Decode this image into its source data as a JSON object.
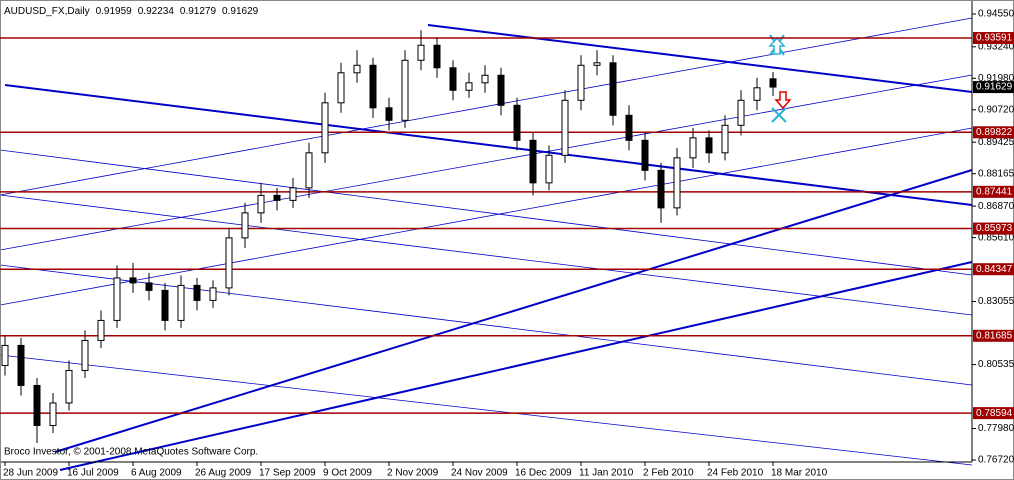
{
  "chart_data": {
    "type": "candlestick",
    "symbol": "AUDUSD_FX,Daily",
    "footer": "Broco Investor, © 2001-2008 MetaQuotes Software Corp.",
    "categories": [
      "28 Jun 2009",
      null,
      null,
      null,
      "16 Jul 2009",
      null,
      null,
      null,
      "6 Aug 2009",
      null,
      null,
      null,
      "26 Aug 2009",
      null,
      null,
      null,
      "17 Sep 2009",
      null,
      null,
      null,
      "9 Oct 2009",
      null,
      null,
      null,
      "2 Nov 2009",
      null,
      null,
      null,
      "24 Nov 2009",
      null,
      null,
      null,
      "16 Dec 2009",
      null,
      null,
      null,
      "11 Jan 2010",
      null,
      null,
      null,
      "2 Feb 2010",
      null,
      null,
      null,
      "24 Feb 2010",
      null,
      null,
      null,
      "18 Mar 2010"
    ],
    "open": [
      0.805,
      0.813,
      0.797,
      0.781,
      0.79,
      0.803,
      0.815,
      0.823,
      0.84,
      0.838,
      0.835,
      0.823,
      0.837,
      0.831,
      0.836,
      0.856,
      0.866,
      0.873,
      0.871,
      0.876,
      0.89,
      0.91,
      0.922,
      0.925,
      0.908,
      0.903,
      0.927,
      0.933,
      0.924,
      0.915,
      0.918,
      0.921,
      0.909,
      0.895,
      0.878,
      0.889,
      0.911,
      0.925,
      0.926,
      0.905,
      0.895,
      0.883,
      0.868,
      0.888,
      0.896,
      0.89,
      0.901,
      0.911,
      0.91959
    ],
    "high": [
      0.817,
      0.816,
      0.8,
      0.794,
      0.807,
      0.819,
      0.827,
      0.845,
      0.846,
      0.842,
      0.838,
      0.841,
      0.84,
      0.839,
      0.86,
      0.87,
      0.878,
      0.876,
      0.88,
      0.894,
      0.914,
      0.926,
      0.931,
      0.928,
      0.912,
      0.931,
      0.939,
      0.936,
      0.927,
      0.922,
      0.925,
      0.924,
      0.912,
      0.898,
      0.893,
      0.915,
      0.929,
      0.931,
      0.929,
      0.909,
      0.898,
      0.886,
      0.892,
      0.9,
      0.899,
      0.905,
      0.915,
      0.92,
      0.92234
    ],
    "low": [
      0.801,
      0.793,
      0.774,
      0.778,
      0.787,
      0.8,
      0.812,
      0.82,
      0.834,
      0.831,
      0.819,
      0.82,
      0.827,
      0.828,
      0.833,
      0.852,
      0.862,
      0.867,
      0.868,
      0.872,
      0.886,
      0.906,
      0.918,
      0.904,
      0.899,
      0.9,
      0.923,
      0.92,
      0.911,
      0.912,
      0.914,
      0.905,
      0.891,
      0.873,
      0.875,
      0.886,
      0.907,
      0.921,
      0.901,
      0.891,
      0.879,
      0.862,
      0.865,
      0.884,
      0.886,
      0.887,
      0.897,
      0.907,
      0.91279
    ],
    "close": [
      0.813,
      0.797,
      0.781,
      0.79,
      0.803,
      0.815,
      0.823,
      0.84,
      0.838,
      0.835,
      0.823,
      0.837,
      0.831,
      0.836,
      0.856,
      0.866,
      0.873,
      0.871,
      0.876,
      0.89,
      0.91,
      0.922,
      0.925,
      0.908,
      0.903,
      0.927,
      0.933,
      0.924,
      0.915,
      0.918,
      0.921,
      0.909,
      0.895,
      0.878,
      0.889,
      0.911,
      0.925,
      0.926,
      0.905,
      0.895,
      0.883,
      0.868,
      0.888,
      0.896,
      0.89,
      0.901,
      0.911,
      0.916,
      0.91629
    ],
    "ylim": [
      0.7664,
      0.9511
    ],
    "yticks": [
      {
        "value": 0.9455,
        "label": "0.94550"
      },
      {
        "value": 0.9324,
        "label": "0.93240"
      },
      {
        "value": 0.9198,
        "label": "0.91980"
      },
      {
        "value": 0.9072,
        "label": "0.90720"
      },
      0.89425,
      0.88165,
      {
        "value": 0.8687,
        "label": "0.86870"
      },
      {
        "value": 0.8561,
        "label": "0.85610"
      },
      0.83055,
      0.80535,
      {
        "value": 0.7798,
        "label": "0.77980"
      },
      {
        "value": 0.7672,
        "label": "0.76720"
      }
    ],
    "levels": [
      0.93591,
      0.89822,
      0.87441,
      0.85973,
      0.84347,
      0.81685,
      0.78594
    ],
    "level_color": "#a00000",
    "body_up": "#ffffff",
    "body_down": "#000000"
  }
}
